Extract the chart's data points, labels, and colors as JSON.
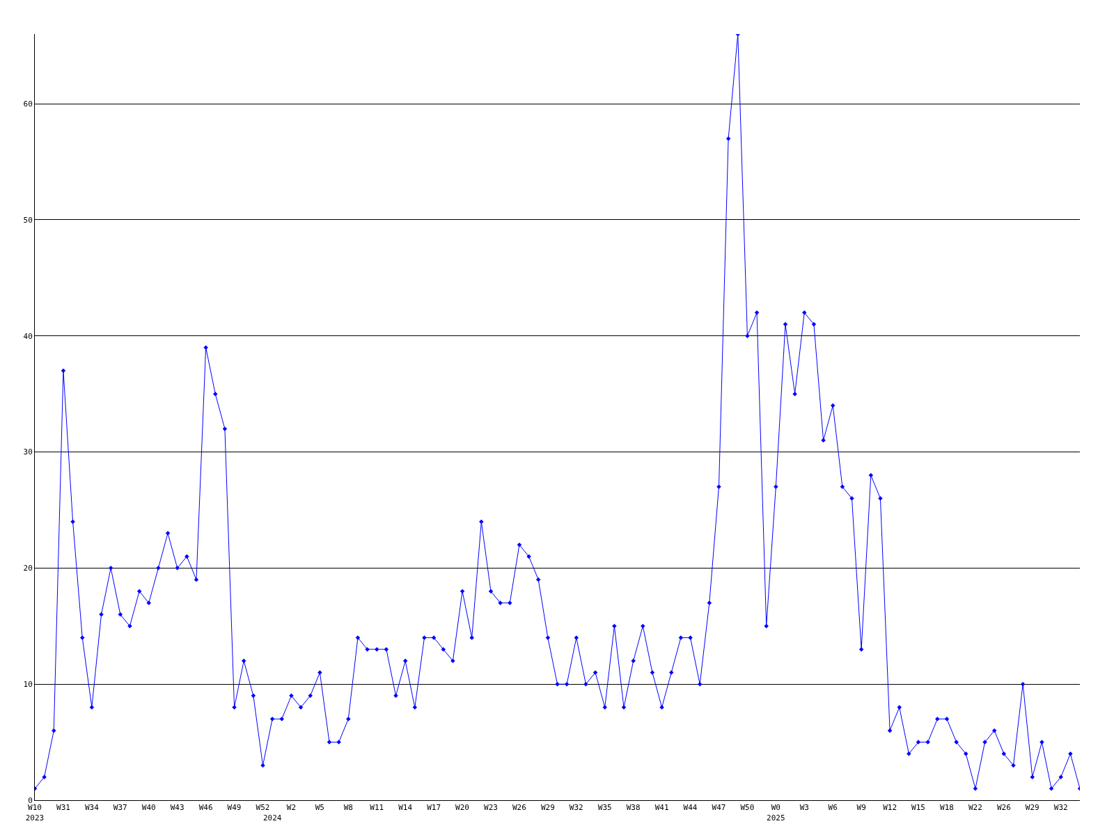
{
  "chart_data": {
    "type": "line",
    "categories": [
      "W10\n2023",
      null,
      null,
      "W31",
      null,
      null,
      "W34",
      null,
      null,
      "W37",
      null,
      null,
      "W40",
      null,
      null,
      "W43",
      null,
      null,
      "W46",
      null,
      null,
      "W49",
      null,
      null,
      "W52",
      "\n2024",
      null,
      "W2",
      null,
      null,
      "W5",
      null,
      null,
      "W8",
      null,
      null,
      "W11",
      null,
      null,
      "W14",
      null,
      null,
      "W17",
      null,
      null,
      "W20",
      null,
      null,
      "W23",
      null,
      null,
      "W26",
      null,
      null,
      "W29",
      null,
      null,
      "W32",
      null,
      null,
      "W35",
      null,
      null,
      "W38",
      null,
      null,
      "W41",
      null,
      null,
      "W44",
      null,
      null,
      "W47",
      null,
      null,
      "W50",
      null,
      null,
      "W0\n2025",
      null,
      null,
      "W3",
      null,
      null,
      "W6",
      null,
      null,
      "W9",
      null,
      null,
      "W12",
      null,
      null,
      "W15",
      null,
      null,
      "W18",
      null,
      null,
      "W22",
      null,
      null,
      "W26",
      null,
      null,
      "W29",
      null,
      null,
      "W32",
      null,
      null
    ],
    "series": [
      {
        "color": "#0000ff",
        "values": [
          1,
          2,
          6,
          37,
          24,
          14,
          8,
          16,
          20,
          16,
          15,
          18,
          17,
          20,
          23,
          20,
          21,
          19,
          39,
          35,
          32,
          8,
          12,
          9,
          3,
          7,
          7,
          9,
          8,
          9,
          11,
          5,
          5,
          7,
          14,
          13,
          13,
          13,
          9,
          12,
          8,
          14,
          14,
          13,
          12,
          18,
          14,
          24,
          18,
          17,
          17,
          22,
          21,
          19,
          14,
          10,
          10,
          14,
          10,
          11,
          8,
          15,
          8,
          12,
          15,
          11,
          8,
          11,
          14,
          14,
          10,
          17,
          27,
          57,
          66,
          40,
          42,
          15,
          27,
          41,
          35,
          42,
          41,
          31,
          34,
          27,
          26,
          13,
          28,
          26,
          6,
          8,
          4,
          5,
          5,
          7,
          7,
          5,
          4,
          1,
          5,
          6,
          4,
          3,
          10,
          2,
          5,
          1,
          2,
          4,
          1
        ]
      }
    ],
    "ylim": [
      0,
      66
    ],
    "yticks": [
      0,
      10,
      20,
      30,
      40,
      50,
      60
    ],
    "grid": "y",
    "marker": "diamond",
    "line_style": "solid"
  }
}
